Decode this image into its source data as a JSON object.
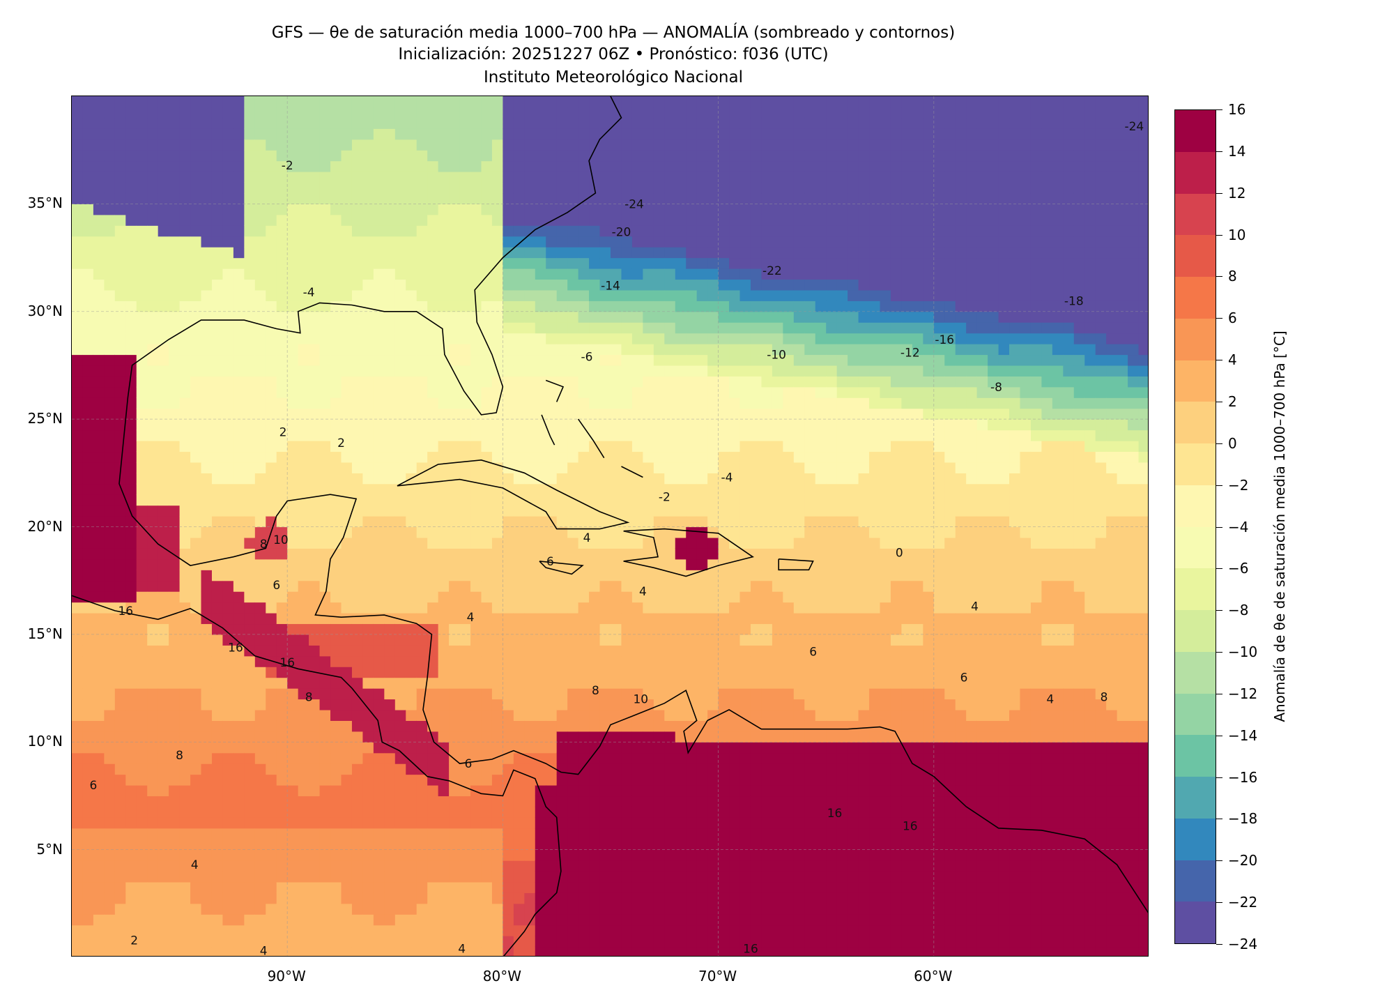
{
  "title": {
    "line1": "GFS — θe de saturación media 1000–700 hPa — ANOMALÍA (sombreado y contornos)",
    "line2": "Inicialización: 20251227 06Z   •   Pronóstico: f036 (UTC)",
    "line3": "Instituto Meteorológico Nacional"
  },
  "chart_data": {
    "type": "heatmap",
    "title": "GFS — θe de saturación media 1000–700 hPa — ANOMALÍA (sombreado y contornos)",
    "projection": "PlateCarree",
    "lon_range": [
      -100,
      -50
    ],
    "lat_range": [
      0,
      40
    ],
    "grid": true,
    "x_ticks": [
      {
        "value": -90,
        "label": "90°W"
      },
      {
        "value": -80,
        "label": "80°W"
      },
      {
        "value": -70,
        "label": "70°W"
      },
      {
        "value": -60,
        "label": "60°W"
      }
    ],
    "y_ticks": [
      {
        "value": 35,
        "label": "35°N"
      },
      {
        "value": 30,
        "label": "30°N"
      },
      {
        "value": 25,
        "label": "25°N"
      },
      {
        "value": 20,
        "label": "20°N"
      },
      {
        "value": 15,
        "label": "15°N"
      },
      {
        "value": 10,
        "label": "10°N"
      },
      {
        "value": 5,
        "label": "5°N"
      }
    ],
    "colorbar": {
      "label": "Anomalía de θe de saturación media 1000–700 hPa [°C]",
      "levels": [
        -24,
        -22,
        -20,
        -18,
        -16,
        -14,
        -12,
        -10,
        -8,
        -6,
        -4,
        -2,
        0,
        2,
        4,
        6,
        8,
        10,
        12,
        14,
        16
      ],
      "tick_labels": [
        "−24",
        "−22",
        "−20",
        "−18",
        "−16",
        "−14",
        "−12",
        "−10",
        "−8",
        "−6",
        "−4",
        "−2",
        "0",
        "2",
        "4",
        "6",
        "8",
        "10",
        "12",
        "14",
        "16"
      ],
      "colors": [
        "#5e4fa2",
        "#4565ab",
        "#3288bd",
        "#51a8b0",
        "#6cc4a4",
        "#94d4a4",
        "#b5e0a4",
        "#d4ed9b",
        "#e9f59e",
        "#f7fbb2",
        "#fef7b1",
        "#fee592",
        "#fdd07e",
        "#fdb466",
        "#f99655",
        "#f57748",
        "#e65948",
        "#d7434f",
        "#bd1f4a",
        "#9e0142"
      ],
      "range": [
        -24,
        16
      ]
    },
    "contour_labels": [
      {
        "text": "-24",
        "lon": -73.9,
        "lat": 35.0
      },
      {
        "text": "-20",
        "lon": -74.5,
        "lat": 33.7
      },
      {
        "text": "-22",
        "lon": -67.5,
        "lat": 31.9
      },
      {
        "text": "-14",
        "lon": -75.0,
        "lat": 31.2
      },
      {
        "text": "-18",
        "lon": -53.5,
        "lat": 30.5
      },
      {
        "text": "-16",
        "lon": -59.5,
        "lat": 28.7
      },
      {
        "text": "-12",
        "lon": -61.1,
        "lat": 28.1
      },
      {
        "text": "-10",
        "lon": -67.3,
        "lat": 28.0
      },
      {
        "text": "-8",
        "lon": -57.1,
        "lat": 26.5
      },
      {
        "text": "-6",
        "lon": -76.1,
        "lat": 27.9
      },
      {
        "text": "-4",
        "lon": -89.0,
        "lat": 30.9
      },
      {
        "text": "-4",
        "lon": -69.6,
        "lat": 22.3
      },
      {
        "text": "-2",
        "lon": -72.5,
        "lat": 21.4
      },
      {
        "text": "-2",
        "lon": -90.0,
        "lat": 36.8
      },
      {
        "text": "-24",
        "lon": -50.7,
        "lat": 38.6
      },
      {
        "text": "0",
        "lon": -61.6,
        "lat": 18.8
      },
      {
        "text": "4",
        "lon": -58.1,
        "lat": 16.3
      },
      {
        "text": "2",
        "lon": -90.2,
        "lat": 24.4
      },
      {
        "text": "2",
        "lon": -87.5,
        "lat": 23.9
      },
      {
        "text": "10",
        "lon": -90.3,
        "lat": 19.4
      },
      {
        "text": "8",
        "lon": -91.1,
        "lat": 19.2
      },
      {
        "text": "6",
        "lon": -90.5,
        "lat": 17.3
      },
      {
        "text": "4",
        "lon": -76.1,
        "lat": 19.5
      },
      {
        "text": "6",
        "lon": -77.8,
        "lat": 18.4
      },
      {
        "text": "4",
        "lon": -73.5,
        "lat": 17.0
      },
      {
        "text": "4",
        "lon": -81.5,
        "lat": 15.8
      },
      {
        "text": "16",
        "lon": -97.5,
        "lat": 16.1
      },
      {
        "text": "16",
        "lon": -92.4,
        "lat": 14.4
      },
      {
        "text": "16",
        "lon": -90.0,
        "lat": 13.7
      },
      {
        "text": "8",
        "lon": -89.0,
        "lat": 12.1
      },
      {
        "text": "8",
        "lon": -75.7,
        "lat": 12.4
      },
      {
        "text": "10",
        "lon": -73.6,
        "lat": 12.0
      },
      {
        "text": "6",
        "lon": -65.6,
        "lat": 14.2
      },
      {
        "text": "6",
        "lon": -58.6,
        "lat": 13.0
      },
      {
        "text": "4",
        "lon": -54.6,
        "lat": 12.0
      },
      {
        "text": "8",
        "lon": -52.1,
        "lat": 12.1
      },
      {
        "text": "8",
        "lon": -95.0,
        "lat": 9.4
      },
      {
        "text": "6",
        "lon": -99.0,
        "lat": 8.0
      },
      {
        "text": "6",
        "lon": -81.6,
        "lat": 9.0
      },
      {
        "text": "4",
        "lon": -94.3,
        "lat": 4.3
      },
      {
        "text": "2",
        "lon": -97.1,
        "lat": 0.8
      },
      {
        "text": "4",
        "lon": -91.1,
        "lat": 0.3
      },
      {
        "text": "4",
        "lon": -81.9,
        "lat": 0.4
      },
      {
        "text": "16",
        "lon": -68.5,
        "lat": 0.4
      },
      {
        "text": "16",
        "lon": -64.6,
        "lat": 6.7
      },
      {
        "text": "16",
        "lon": -61.1,
        "lat": 6.1
      }
    ]
  }
}
